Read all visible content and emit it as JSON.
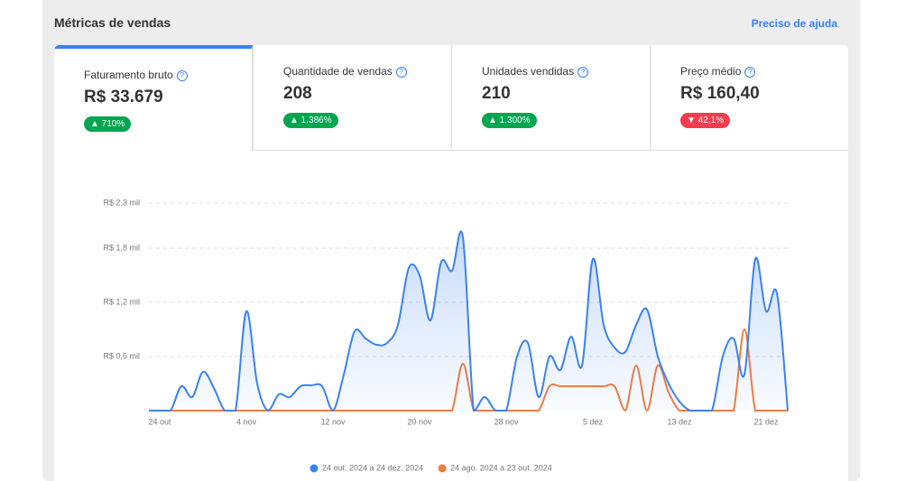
{
  "header": {
    "title": "Métricas de vendas",
    "help_link": "Preciso de ajuda"
  },
  "kpis": [
    {
      "label": "Faturamento bruto",
      "value": "R$ 33.679",
      "change": "▲ 710%",
      "direction": "up"
    },
    {
      "label": "Quantidade de vendas",
      "value": "208",
      "change": "▲ 1.386%",
      "direction": "up"
    },
    {
      "label": "Unidades vendidas",
      "value": "210",
      "change": "▲ 1.300%",
      "direction": "up"
    },
    {
      "label": "Preço médio",
      "value": "R$ 160,40",
      "change": "▼ 42,1%",
      "direction": "down"
    }
  ],
  "chart_data": {
    "type": "line",
    "categories": [
      null,
      "24 out",
      null,
      null,
      null,
      null,
      null,
      null,
      null,
      "4 nov",
      null,
      null,
      null,
      null,
      null,
      null,
      null,
      "12 nov",
      null,
      null,
      null,
      null,
      null,
      null,
      null,
      "20 nov",
      null,
      null,
      null,
      null,
      null,
      null,
      null,
      "28 nov",
      null,
      null,
      null,
      null,
      null,
      null,
      null,
      "5 dez",
      null,
      null,
      null,
      null,
      null,
      null,
      null,
      "13 dez",
      null,
      null,
      null,
      null,
      null,
      null,
      null,
      "21 dez",
      null,
      null
    ],
    "series": [
      {
        "name": "24 out. 2024 a 24 dez. 2024",
        "color": "#3b82f0",
        "values": [
          0,
          0,
          0,
          0.27,
          0.15,
          0.43,
          0.25,
          0,
          0,
          1.1,
          0.3,
          0,
          0.18,
          0.15,
          0.27,
          0.28,
          0.27,
          0,
          0.4,
          0.88,
          0.8,
          0.73,
          0.75,
          0.95,
          1.58,
          1.5,
          1.0,
          1.65,
          1.55,
          1.92,
          0,
          0.15,
          0,
          0,
          0.6,
          0.75,
          0.15,
          0.6,
          0.45,
          0.82,
          0.5,
          1.68,
          0.95,
          0.7,
          0.65,
          0.95,
          1.12,
          0.6,
          0.3,
          0.1,
          0,
          0,
          0,
          0.6,
          0.8,
          0.4,
          1.68,
          1.1,
          1.3,
          0
        ]
      },
      {
        "name": "24 ago. 2024 a 23 out. 2024",
        "color": "#f47c3c",
        "values": [
          0,
          0,
          0,
          0,
          0,
          0,
          0,
          0,
          0,
          0,
          0,
          0,
          0,
          0,
          0,
          0,
          0,
          0,
          0,
          0,
          0,
          0,
          0,
          0,
          0,
          0,
          0,
          0,
          0,
          0.52,
          0,
          0,
          0,
          0,
          0,
          0,
          0,
          0.27,
          0.27,
          0.27,
          0.27,
          0.27,
          0.27,
          0.27,
          0,
          0.5,
          0,
          0.5,
          0.2,
          0,
          0,
          0,
          0,
          0,
          0,
          0.9,
          0,
          0,
          0,
          0
        ]
      }
    ],
    "ylim": [
      0,
      2.4
    ],
    "yticks": [
      {
        "value": 0.6,
        "label": "R$ 0,6 mil"
      },
      {
        "value": 1.2,
        "label": "R$ 1,2 mil"
      },
      {
        "value": 1.8,
        "label": "R$ 1,8 mil"
      },
      {
        "value": 2.3,
        "label": "R$ 2,3 mil"
      }
    ],
    "grid": true
  }
}
